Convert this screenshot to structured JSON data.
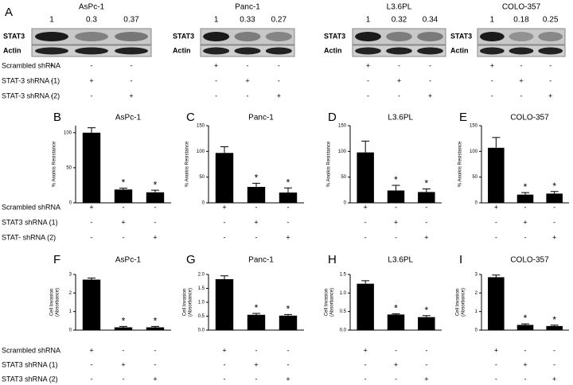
{
  "panel_a": {
    "letter": "A",
    "row_labels": [
      "STAT3",
      "Actin"
    ],
    "blots": [
      {
        "title": "AsPc-1",
        "ratios": [
          1,
          0.3,
          0.37
        ]
      },
      {
        "title": "Panc-1",
        "ratios": [
          1,
          0.33,
          0.27
        ]
      },
      {
        "title": "L3.6PL",
        "ratios": [
          1,
          0.32,
          0.34
        ]
      },
      {
        "title": "COLO-357",
        "ratios": [
          1,
          0.18,
          0.25
        ]
      }
    ],
    "conditions": [
      "Scrambled shRNA",
      "STAT-3 shRNA (1)",
      "STAT-3 shRNA (2)"
    ]
  },
  "signs": [
    [
      "+",
      "-",
      "-"
    ],
    [
      "-",
      "+",
      "-"
    ],
    [
      "-",
      "-",
      "+"
    ]
  ],
  "anoikis_conditions": [
    "Scrambled shRNA",
    "STAT3 shRNA (1)",
    "STAT- shRNA (2)"
  ],
  "invasion_conditions": [
    "Scrambled shRNA",
    "STAT3 shRNA (1)",
    "STAT3 shRNA (2)"
  ],
  "chart_data": [
    {
      "type": "bar",
      "letter": "B",
      "title": "AsPc-1",
      "ylabel": "% Anoikis Resistance",
      "color": "#000000",
      "values": [
        100,
        19,
        15
      ],
      "errors": [
        7,
        2,
        3
      ],
      "marks": [
        null,
        "*",
        "*"
      ],
      "ylim": [
        0,
        110
      ],
      "yticks": [
        0,
        50,
        100
      ]
    },
    {
      "type": "bar",
      "letter": "C",
      "title": "Panc-1",
      "ylabel": "% Anoikis Resistance",
      "color": "#000000",
      "values": [
        97,
        31,
        20
      ],
      "errors": [
        12,
        7,
        9
      ],
      "marks": [
        null,
        "*",
        "*"
      ],
      "ylim": [
        0,
        150
      ],
      "yticks": [
        0,
        50,
        100,
        150
      ]
    },
    {
      "type": "bar",
      "letter": "D",
      "title": "L3.6PL",
      "ylabel": "% Anoikis Resistance",
      "color": "#000000",
      "values": [
        98,
        24,
        21
      ],
      "errors": [
        22,
        10,
        6
      ],
      "marks": [
        null,
        "*",
        "*"
      ],
      "ylim": [
        0,
        150
      ],
      "yticks": [
        0,
        50,
        100,
        150
      ]
    },
    {
      "type": "bar",
      "letter": "E",
      "title": "COLO-357",
      "ylabel": "% Anoikis Resistance",
      "color": "#000000",
      "values": [
        107,
        16,
        18
      ],
      "errors": [
        20,
        4,
        4
      ],
      "marks": [
        null,
        "*",
        "*"
      ],
      "ylim": [
        0,
        150
      ],
      "yticks": [
        0,
        50,
        100,
        150
      ]
    },
    {
      "type": "bar",
      "letter": "F",
      "title": "AsPc-1",
      "ylabel": [
        "Cell Invasion",
        "(Absorbance)"
      ],
      "color": "#000000",
      "values": [
        2.72,
        0.15,
        0.15
      ],
      "errors": [
        0.08,
        0.05,
        0.05
      ],
      "marks": [
        null,
        "*",
        "*"
      ],
      "ylim": [
        0,
        3
      ],
      "yticks": [
        0,
        1,
        2,
        3
      ]
    },
    {
      "type": "bar",
      "letter": "G",
      "title": "Panc-1",
      "ylabel": [
        "Cell Invasion",
        "(Absorbance)"
      ],
      "color": "#000000",
      "values": [
        1.83,
        0.55,
        0.52
      ],
      "errors": [
        0.12,
        0.05,
        0.04
      ],
      "marks": [
        null,
        "*",
        "*"
      ],
      "ylim": [
        0,
        2
      ],
      "yticks": [
        {
          "value": 0,
          "label": "0.0"
        },
        0.5,
        {
          "value": 1,
          "label": "1.0"
        },
        1.5,
        {
          "value": 2,
          "label": "2.0"
        }
      ]
    },
    {
      "type": "bar",
      "letter": "H",
      "title": "L3.6PL",
      "ylabel": [
        "Cell Invasion",
        "(Absorbance)"
      ],
      "color": "#000000",
      "values": [
        1.25,
        0.42,
        0.35
      ],
      "errors": [
        0.08,
        0.02,
        0.04
      ],
      "marks": [
        null,
        "*",
        "*"
      ],
      "ylim": [
        0,
        1.5
      ],
      "yticks": [
        {
          "value": 0,
          "label": "0.0"
        },
        0.5,
        {
          "value": 1,
          "label": "1.0"
        },
        1.5
      ]
    },
    {
      "type": "bar",
      "letter": "I",
      "title": "COLO-357",
      "ylabel": [
        "Cell Invasion",
        "(Absorbance)"
      ],
      "color": "#000000",
      "values": [
        2.85,
        0.28,
        0.22
      ],
      "errors": [
        0.12,
        0.06,
        0.05
      ],
      "marks": [
        null,
        "*",
        "*"
      ],
      "ylim": [
        0,
        3
      ],
      "yticks": [
        0,
        1,
        2,
        3
      ]
    }
  ]
}
